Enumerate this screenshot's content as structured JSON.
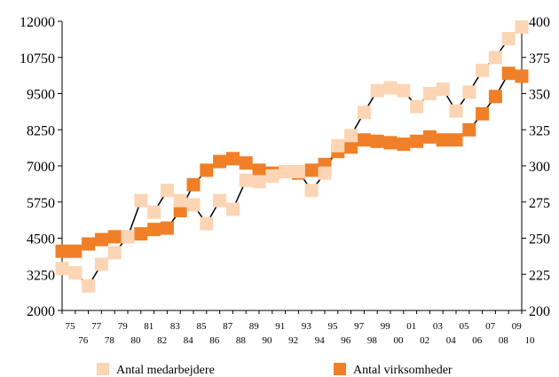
{
  "chart_data": {
    "type": "line",
    "x": [
      "75",
      "76",
      "77",
      "78",
      "79",
      "80",
      "81",
      "82",
      "83",
      "84",
      "85",
      "86",
      "87",
      "88",
      "89",
      "90",
      "91",
      "92",
      "93",
      "94",
      "95",
      "96",
      "97",
      "98",
      "99",
      "00",
      "01",
      "02",
      "03",
      "04",
      "05",
      "06",
      "07",
      "08",
      "09",
      "10"
    ],
    "y_left_ticks": [
      "12000",
      "10750",
      "9500",
      "8250",
      "7000",
      "5750",
      "4500",
      "3250",
      "2000"
    ],
    "y_right_ticks": [
      "400",
      "375",
      "350",
      "325",
      "300",
      "275",
      "250",
      "225",
      "200"
    ],
    "ylim_left": [
      2000,
      12000
    ],
    "ylim_right": [
      200,
      400
    ],
    "grid": false,
    "legend_position": "bottom",
    "series": [
      {
        "name": "Antal medarbejdere",
        "axis": "left",
        "color": "#fcd5b5",
        "values": [
          3450,
          3300,
          2850,
          3600,
          4000,
          4550,
          5800,
          5400,
          6150,
          5800,
          5650,
          5000,
          5800,
          5500,
          6500,
          6450,
          6650,
          6800,
          6800,
          6150,
          6750,
          7700,
          8050,
          8850,
          9600,
          9700,
          9600,
          9050,
          9500,
          9650,
          8900,
          9550,
          10300,
          10750,
          11400,
          11800
        ]
      },
      {
        "name": "Antal virksomheder",
        "axis": "right",
        "color": "#f07f27",
        "values": [
          241,
          241,
          246,
          249,
          251,
          251,
          253,
          256,
          257,
          269,
          287,
          297,
          303,
          305,
          302,
          297,
          295,
          296,
          295,
          297,
          301,
          310,
          313,
          318,
          317,
          316,
          315,
          317,
          320,
          318,
          318,
          325,
          336,
          348,
          364,
          362
        ]
      }
    ]
  }
}
